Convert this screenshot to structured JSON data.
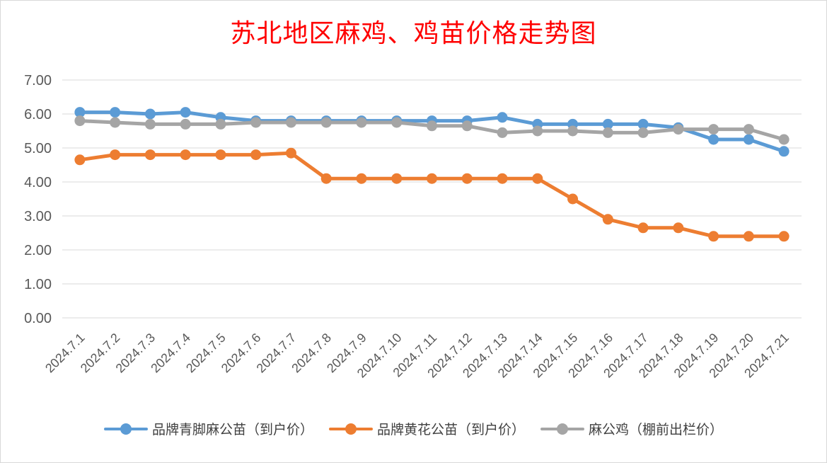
{
  "chart_data": {
    "type": "line",
    "title": "苏北地区麻鸡、鸡苗价格走势图",
    "categories": [
      "2024.7.1",
      "2024.7.2",
      "2024.7.3",
      "2024.7.4",
      "2024.7.5",
      "2024.7.6",
      "2024.7.7",
      "2024.7.8",
      "2024.7.9",
      "2024.7.10",
      "2024.7.11",
      "2024.7.12",
      "2024.7.13",
      "2024.7.14",
      "2024.7.15",
      "2024.7.16",
      "2024.7.17",
      "2024.7.18",
      "2024.7.19",
      "2024.7.20",
      "2024.7.21"
    ],
    "y_ticks": [
      "0.00",
      "1.00",
      "2.00",
      "3.00",
      "4.00",
      "5.00",
      "6.00",
      "7.00"
    ],
    "ylim": [
      0,
      7
    ],
    "grid": true,
    "legend_position": "bottom",
    "series": [
      {
        "name": "品牌青脚麻公苗（到户价）",
        "color": "#5b9bd5",
        "values": [
          6.05,
          6.05,
          6.0,
          6.05,
          5.9,
          5.8,
          5.8,
          5.8,
          5.8,
          5.8,
          5.8,
          5.8,
          5.9,
          5.7,
          5.7,
          5.7,
          5.7,
          5.6,
          5.25,
          5.25,
          4.9
        ]
      },
      {
        "name": "品牌黄花公苗（到户价）",
        "color": "#ed7d31",
        "values": [
          4.65,
          4.8,
          4.8,
          4.8,
          4.8,
          4.8,
          4.85,
          4.1,
          4.1,
          4.1,
          4.1,
          4.1,
          4.1,
          4.1,
          3.5,
          2.9,
          2.65,
          2.65,
          2.4,
          2.4,
          2.4
        ]
      },
      {
        "name": "麻公鸡（棚前出栏价）",
        "color": "#a5a5a5",
        "values": [
          5.8,
          5.75,
          5.7,
          5.7,
          5.7,
          5.75,
          5.75,
          5.75,
          5.75,
          5.75,
          5.65,
          5.65,
          5.45,
          5.5,
          5.5,
          5.45,
          5.45,
          5.55,
          5.55,
          5.55,
          5.25
        ]
      }
    ]
  }
}
